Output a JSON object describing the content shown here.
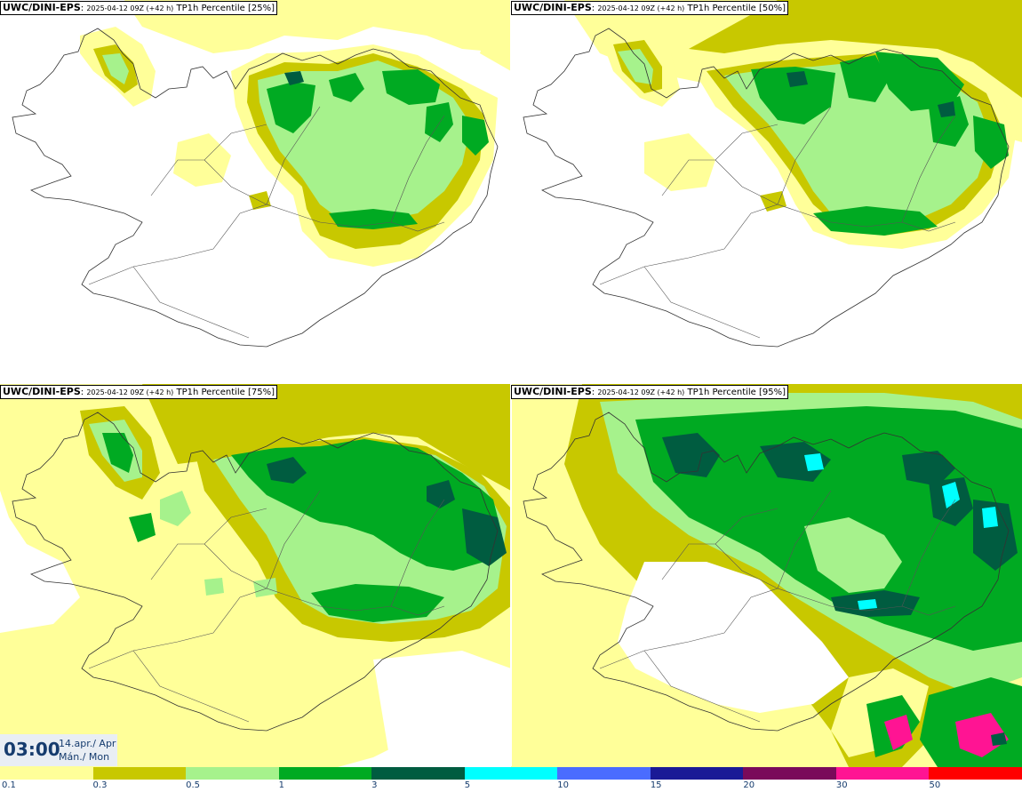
{
  "panels": [
    {
      "source": "UWC/DINI-EPS",
      "run": "2025-04-12 09Z (+42 h)",
      "field": "TP1h Percentile [25%]"
    },
    {
      "source": "UWC/DINI-EPS",
      "run": "2025-04-12 09Z (+42 h)",
      "field": "TP1h Percentile [50%]"
    },
    {
      "source": "UWC/DINI-EPS",
      "run": "2025-04-12 09Z (+42 h)",
      "field": "TP1h Percentile [75%]"
    },
    {
      "source": "UWC/DINI-EPS",
      "run": "2025-04-12 09Z (+42 h)",
      "field": "TP1h Percentile [95%]"
    }
  ],
  "valid_time": {
    "hour": "03:00",
    "date_line": "14.apr./ Apr",
    "day_line": "Mán./ Mon"
  },
  "colorbar": {
    "labels": [
      "0.1",
      "0.3",
      "0.5",
      "1",
      "3",
      "5",
      "10",
      "15",
      "20",
      "30",
      "50"
    ],
    "colors": [
      "#ffff99",
      "#c8c800",
      "#a6f28c",
      "#00aa22",
      "#005c40",
      "#00ffff",
      "#4a6cff",
      "#1a1a96",
      "#7a0a5a",
      "#ff1493",
      "#ff0000"
    ]
  },
  "colors": {
    "coast": "#333333",
    "bg": "#ffffff"
  }
}
